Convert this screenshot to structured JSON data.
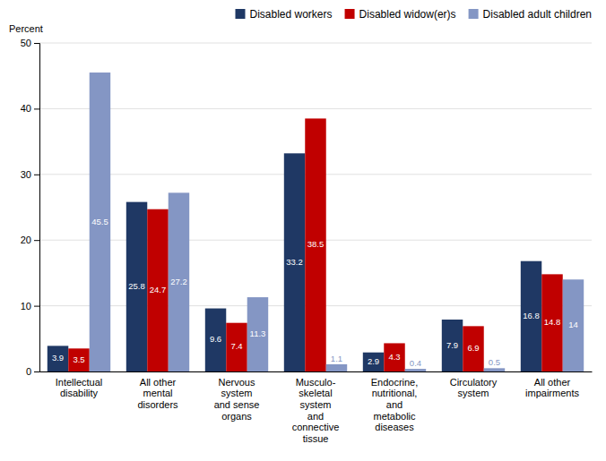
{
  "chart_data": {
    "type": "bar",
    "ylabel": "Percent",
    "categories": [
      "Intellectual\ndisability",
      "All other\nmental\ndisorders",
      "Nervous\nsystem\nand sense\norgans",
      "Musculo-\nskeletal\nsystem\nand\nconnective\ntissue",
      "Endocrine,\nnutritional,\nand\nmetabolic\ndiseases",
      "Circulatory\nsystem",
      "All other\nimpairments"
    ],
    "series": [
      {
        "name": "Disabled workers",
        "color": "#1f3864",
        "values": [
          3.9,
          25.8,
          9.6,
          33.2,
          2.9,
          7.9,
          16.8
        ]
      },
      {
        "name": "Disabled widow(er)s",
        "color": "#c00000",
        "values": [
          3.5,
          24.7,
          7.4,
          38.5,
          4.3,
          6.9,
          14.8
        ]
      },
      {
        "name": "Disabled adult children",
        "color": "#8496c4",
        "values": [
          45.5,
          27.2,
          11.3,
          1.1,
          0.4,
          0.5,
          14.0
        ]
      }
    ],
    "ylim": [
      0,
      50
    ],
    "yticks": [
      0,
      10,
      20,
      30,
      40,
      50
    ],
    "grid": true,
    "legend": "top-right",
    "data_labels": true
  }
}
